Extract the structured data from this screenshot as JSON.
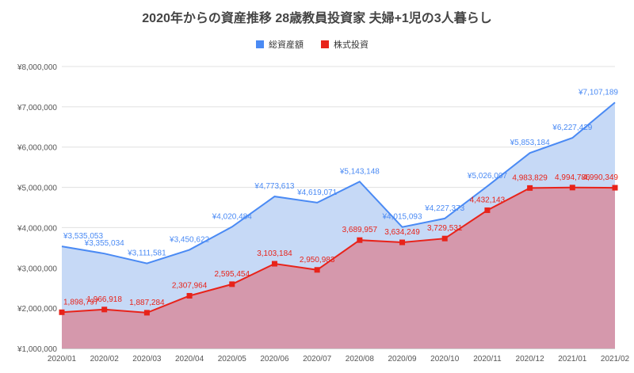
{
  "chart_data": {
    "type": "area",
    "title": "2020年からの資産推移 28歳教員投資家 夫婦+1児の3人暮らし",
    "categories": [
      "2020/01",
      "2020/02",
      "2020/03",
      "2020/04",
      "2020/05",
      "2020/06",
      "2020/07",
      "2020/08",
      "2020/09",
      "2020/10",
      "2020/11",
      "2020/12",
      "2021/01",
      "2021/02"
    ],
    "ylim": [
      1000000,
      8000000
    ],
    "y_ticks": [
      1000000,
      2000000,
      3000000,
      4000000,
      5000000,
      6000000,
      7000000,
      8000000
    ],
    "y_tick_labels": [
      "¥1,000,000",
      "¥2,000,000",
      "¥3,000,000",
      "¥4,000,000",
      "¥5,000,000",
      "¥6,000,000",
      "¥7,000,000",
      "¥8,000,000"
    ],
    "grid": true,
    "legend_position": "top",
    "series": [
      {
        "name": "総資産額",
        "color": "#4a8af4",
        "fill": "#c6d9f6",
        "values": [
          3535053,
          3355034,
          3111581,
          3450622,
          4020484,
          4773613,
          4619071,
          5143148,
          4015093,
          4227373,
          5026007,
          5853184,
          6227429,
          7107189
        ],
        "labels": [
          "¥3,535,053",
          "¥3,355,034",
          "¥3,111,581",
          "¥3,450,622",
          "¥4,020,484",
          "¥4,773,613",
          "¥4,619,071",
          "¥5,143,148",
          "¥4,015,093",
          "¥4,227,373",
          "¥5,026,007",
          "¥5,853,184",
          "¥6,227,429",
          "¥7,107,189"
        ]
      },
      {
        "name": "株式投資",
        "color": "#e8231a",
        "fill": "#d598ac",
        "values": [
          1898797,
          1966918,
          1887284,
          2307964,
          2595454,
          3103184,
          2950983,
          3689957,
          3634249,
          3729531,
          4432143,
          4983829,
          4994786,
          4990349
        ],
        "labels": [
          "1,898,797",
          "1,966,918",
          "1,887,284",
          "2,307,964",
          "2,595,454",
          "3,103,184",
          "2,950,983",
          "3,689,957",
          "3,634,249",
          "3,729,531",
          "4,432,143",
          "4,983,829",
          "4,994,786",
          "4,990,349"
        ]
      }
    ]
  }
}
